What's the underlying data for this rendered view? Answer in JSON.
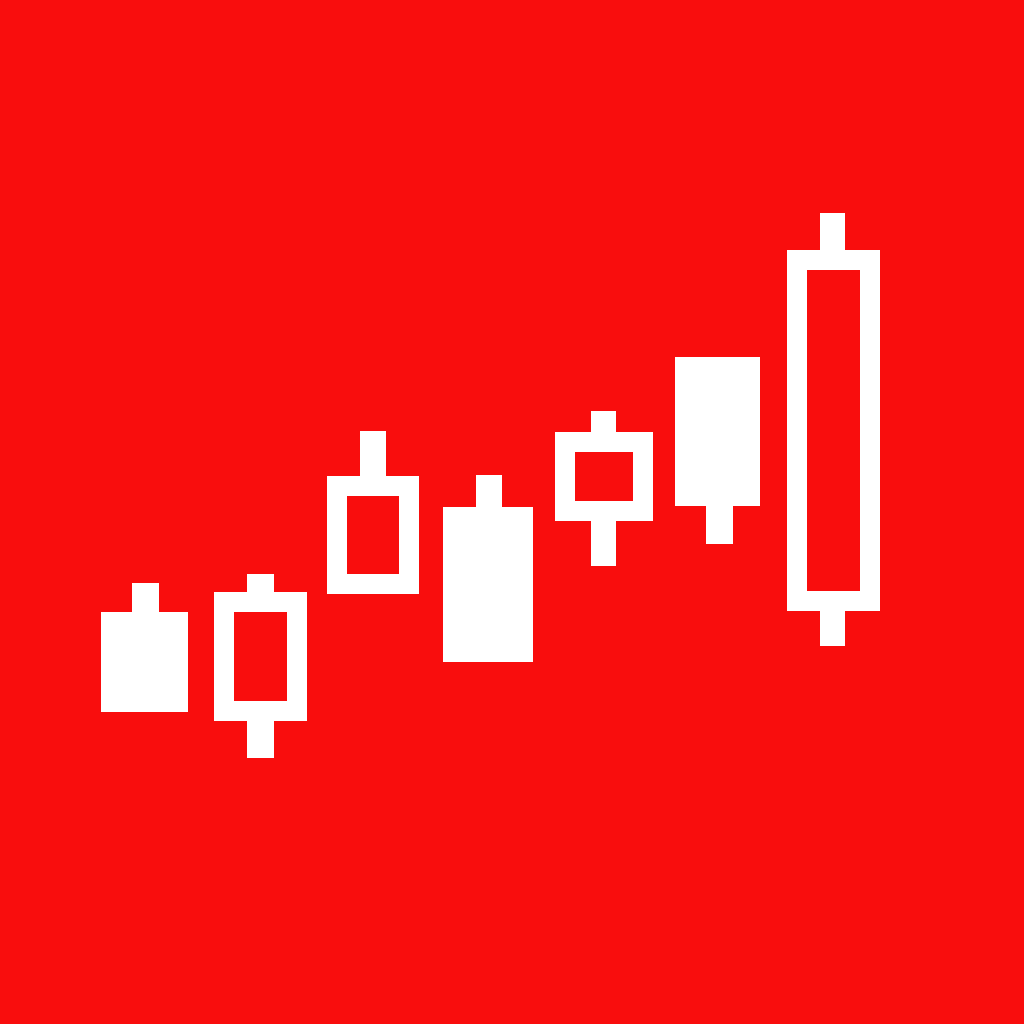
{
  "icon": {
    "name": "candlestick-chart-icon",
    "background_color": "#F90D0D",
    "foreground_color": "#FFFFFF",
    "candles": [
      {
        "style": "filled"
      },
      {
        "style": "hollow"
      },
      {
        "style": "hollow"
      },
      {
        "style": "filled"
      },
      {
        "style": "hollow"
      },
      {
        "style": "filled"
      },
      {
        "style": "hollow"
      }
    ]
  }
}
